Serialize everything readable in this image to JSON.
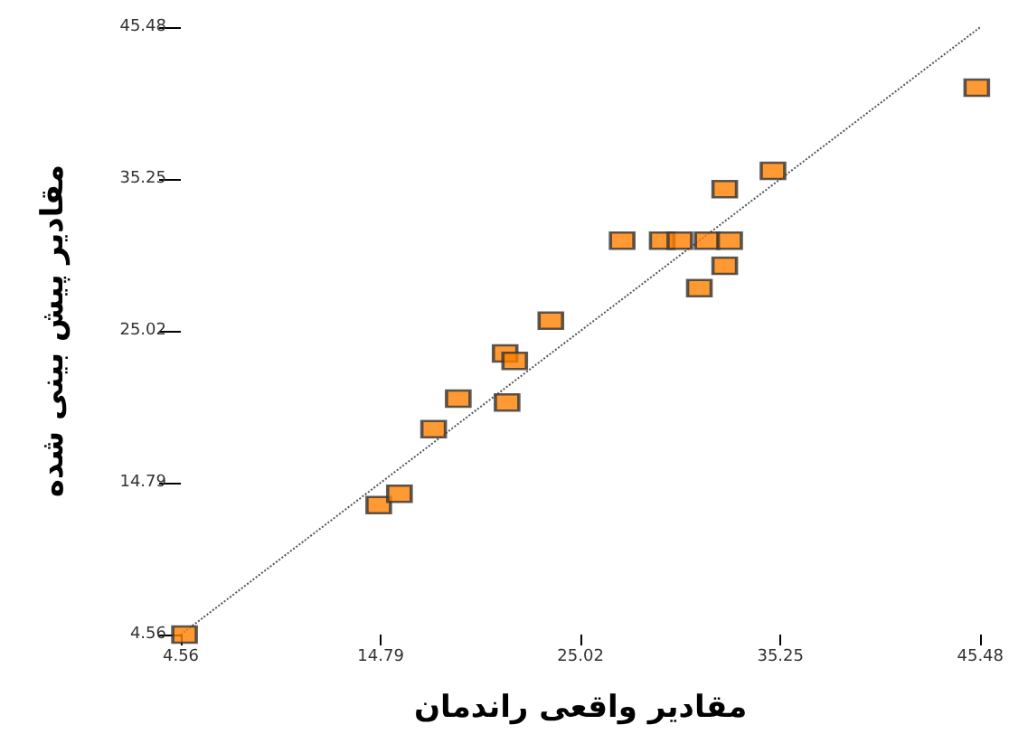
{
  "chart_data": {
    "type": "scatter",
    "xlabel": "مقادیر واقعی راندمان",
    "ylabel": "مقادیر پیش بینی شده",
    "xlim": [
      4.56,
      45.48
    ],
    "ylim": [
      4.56,
      45.48
    ],
    "xticks": [
      4.56,
      14.79,
      25.02,
      35.25,
      45.48
    ],
    "yticks": [
      4.56,
      14.79,
      25.02,
      35.25,
      45.48
    ],
    "grid": false,
    "marker": "square",
    "series": [
      {
        "color": "#ff8000",
        "x": [
          4.75,
          14.69,
          15.75,
          17.5,
          18.76,
          21.16,
          21.65,
          21.26,
          23.5,
          27.15,
          29.2,
          30.1,
          31.5,
          32.65,
          32.4,
          31.1,
          32.4,
          34.87,
          45.3
        ],
        "values": [
          4.56,
          13.28,
          14.05,
          18.4,
          20.46,
          23.5,
          23.0,
          20.2,
          25.7,
          31.1,
          31.1,
          31.1,
          31.1,
          31.1,
          34.56,
          27.9,
          29.4,
          35.8,
          41.4
        ]
      },
      {
        "type": "line",
        "color": "#555555",
        "line_style": "dotted",
        "marker": "none",
        "x": [
          4.56,
          45.48
        ],
        "values": [
          4.56,
          45.48
        ]
      }
    ]
  }
}
